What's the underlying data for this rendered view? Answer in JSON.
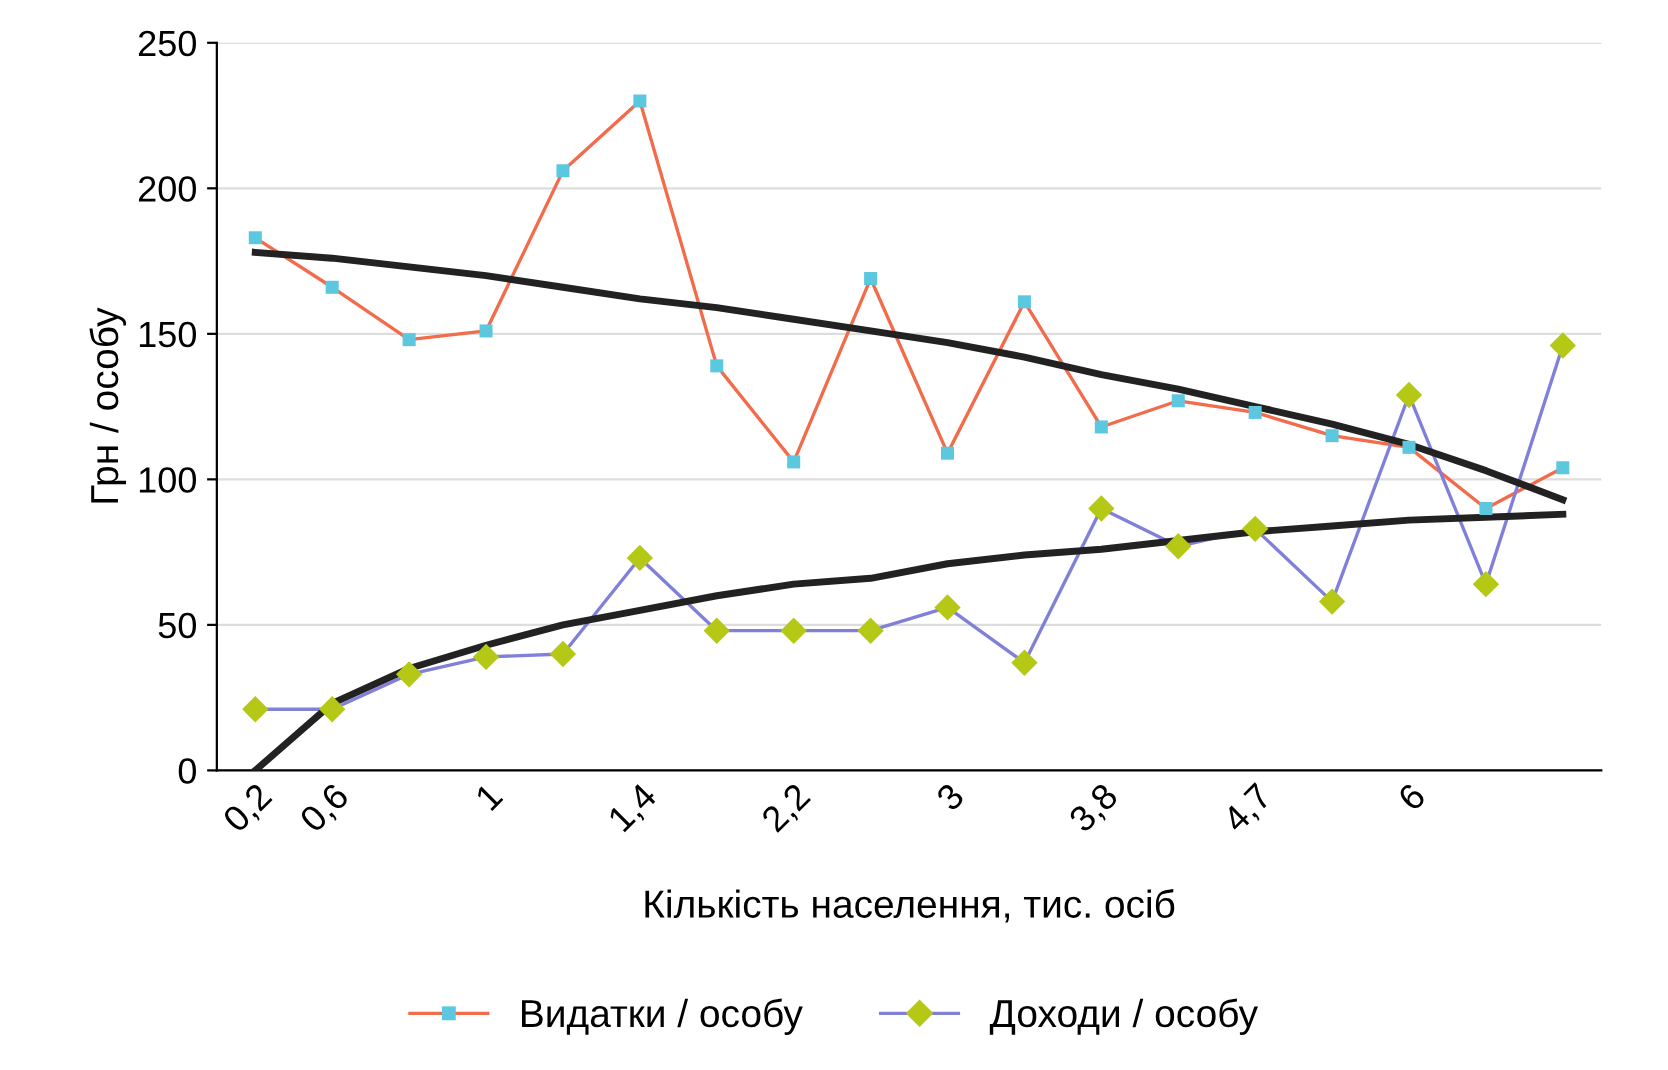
{
  "chart_data": {
    "type": "line",
    "xlabel": "Кількість населення, тис. осіб",
    "ylabel": "Грн / особу",
    "categories": [
      "0,2",
      "0,6",
      null,
      "1",
      null,
      "1,4",
      null,
      "2,2",
      null,
      "3",
      null,
      "3,8",
      null,
      "4,7",
      null,
      "6",
      null,
      null
    ],
    "ylim": [
      0,
      250
    ],
    "yticks": [
      0,
      50,
      100,
      150,
      200,
      250
    ],
    "grid": "y",
    "legend": "bottom",
    "series": [
      {
        "name": "Видатки / особу",
        "color": "#f26b4a",
        "marker": "square",
        "colors": [
          "#5bc8e0",
          "#5bc8e0",
          "#5bc8e0",
          "#5bc8e0",
          "#5bc8e0",
          "#5bc8e0",
          "#5bc8e0",
          "#5bc8e0",
          "#5bc8e0",
          "#5bc8e0",
          "#5bc8e0",
          "#5bc8e0",
          "#5bc8e0",
          "#5bc8e0",
          "#5bc8e0",
          "#5bc8e0",
          "#5bc8e0",
          "#5bc8e0"
        ],
        "values": [
          183,
          166,
          148,
          151,
          206,
          230,
          139,
          106,
          169,
          109,
          161,
          118,
          127,
          123,
          115,
          111,
          90,
          104
        ]
      },
      {
        "name": "Доходи / особу",
        "color": "#8080d8",
        "marker": "diamond",
        "colors": [
          "#b5c816",
          "#b5c816",
          "#b5c816",
          "#b5c816",
          "#b5c816",
          "#b5c816",
          "#b5c816",
          "#b5c816",
          "#b5c816",
          "#b5c816",
          "#b5c816",
          "#b5c816",
          "#b5c816",
          "#b5c816",
          "#b5c816",
          "#b5c816",
          "#b5c816",
          "#b5c816"
        ],
        "values": [
          21,
          21,
          33,
          39,
          40,
          73,
          48,
          48,
          48,
          56,
          37,
          90,
          77,
          83,
          58,
          129,
          64,
          146
        ]
      },
      {
        "color": "#222222",
        "marker": "none",
        "values": [
          178,
          176,
          173,
          170,
          166,
          162,
          159,
          155,
          151,
          147,
          142,
          136,
          131,
          125,
          119,
          112,
          103,
          93
        ]
      },
      {
        "color": "#222222",
        "marker": "none",
        "values": [
          0,
          23,
          35,
          43,
          50,
          55,
          60,
          64,
          66,
          71,
          74,
          76,
          79,
          82,
          84,
          86,
          87,
          88
        ]
      }
    ]
  }
}
